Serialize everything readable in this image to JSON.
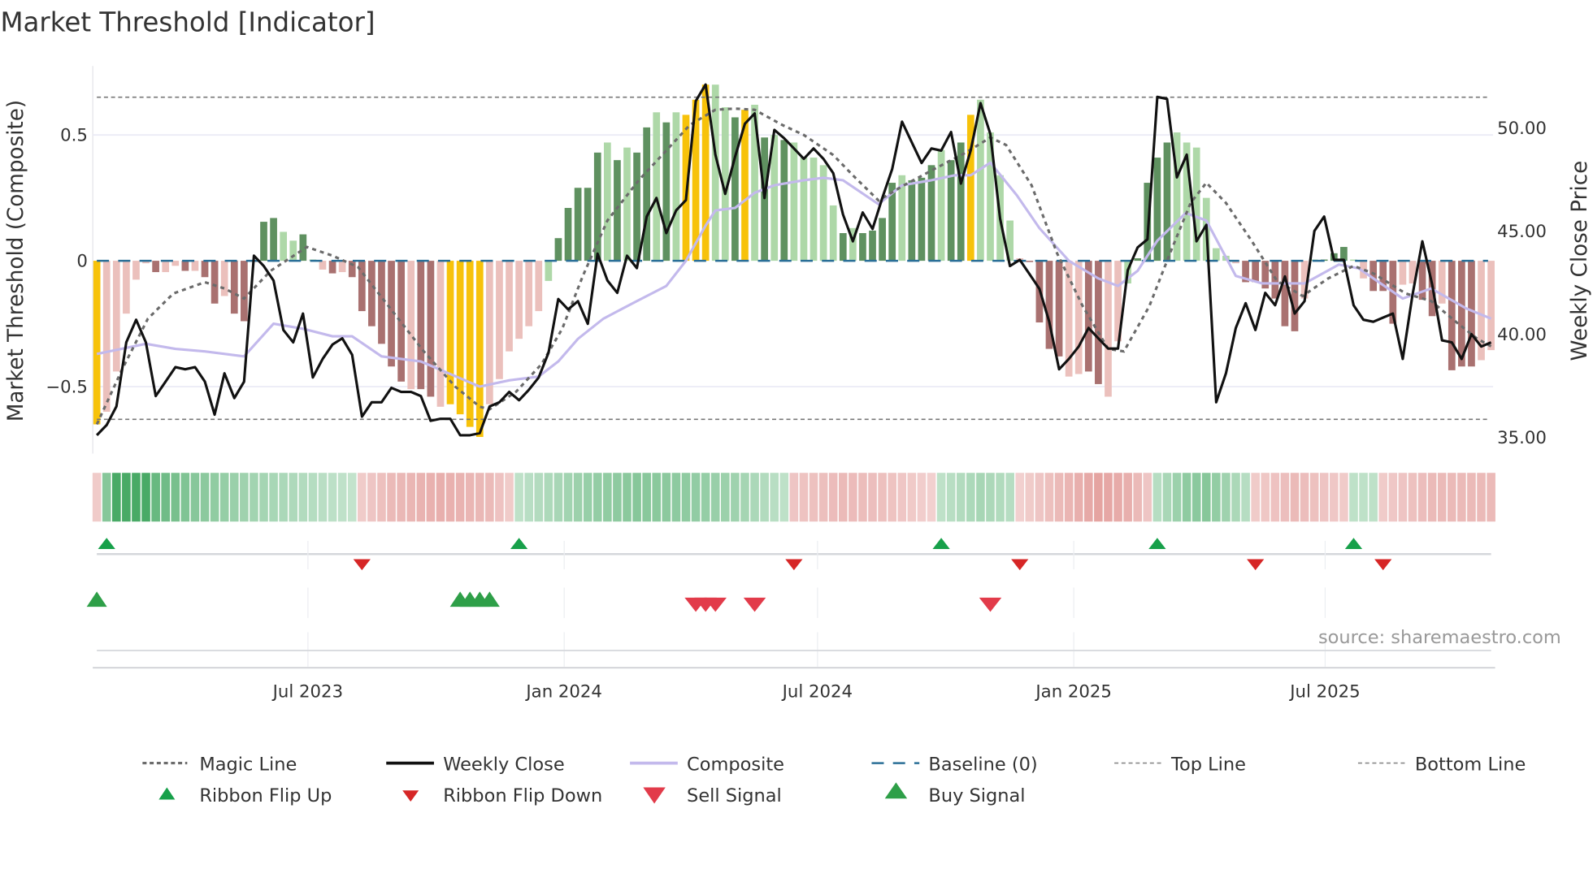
{
  "title": "Market Threshold [Indicator]",
  "source": "source: sharemaestro.com",
  "colors": {
    "G": "#5f9160",
    "g": "#aed8a8",
    "R": "#a97170",
    "r": "#ebc0bc",
    "Y": "#f7c20a",
    "close": "#111111",
    "composite": "#c3b9ec",
    "magic": "#6b6b6b",
    "baseline": "#2a6f97",
    "ribbon_up": "#2f9e50",
    "ribbon_down": "#d46a66",
    "flip_up": "#17a04a",
    "flip_down": "#d62626",
    "sell": "#e23b4a",
    "buy": "#2e9f48"
  },
  "chart_data": {
    "type": "bar",
    "title": "Market Threshold [Indicator]",
    "ylabel": "Market Threshold (Composite)",
    "y2label": "Weekly Close Price",
    "ylim": [
      -0.75,
      0.75
    ],
    "y2lim": [
      34.2,
      56.3
    ],
    "yticks": [
      {
        "v": 0.5,
        "label": "0.5"
      },
      {
        "v": 0,
        "label": "0"
      },
      {
        "v": -0.5,
        "label": "−0.5"
      }
    ],
    "y2ticks": [
      {
        "v": 50,
        "label": "50.00"
      },
      {
        "v": 45,
        "label": "45.00"
      },
      {
        "v": 40,
        "label": "40.00"
      },
      {
        "v": 35,
        "label": "35.00"
      }
    ],
    "xticks": [
      {
        "week": 21.5,
        "label": "Jul 2023"
      },
      {
        "week": 47.6,
        "label": "Jan 2024"
      },
      {
        "week": 73.4,
        "label": "Jul 2024"
      },
      {
        "week": 99.5,
        "label": "Jan 2025"
      },
      {
        "week": 125.1,
        "label": "Jul 2025"
      }
    ],
    "top_line": 0.65,
    "bottom_line": -0.63,
    "baseline": 0,
    "composite_bars": [
      -0.65,
      -0.6,
      -0.44,
      -0.21,
      -0.075,
      -0.01,
      -0.045,
      -0.045,
      -0.02,
      -0.04,
      -0.04,
      -0.065,
      -0.17,
      -0.14,
      -0.21,
      -0.24,
      -0.005,
      0.155,
      0.17,
      0.115,
      0.08,
      0.105,
      0.005,
      -0.035,
      -0.05,
      -0.045,
      -0.065,
      -0.2,
      -0.26,
      -0.33,
      -0.42,
      -0.48,
      -0.51,
      -0.51,
      -0.54,
      -0.58,
      -0.57,
      -0.61,
      -0.66,
      -0.7,
      -0.57,
      -0.47,
      -0.36,
      -0.31,
      -0.26,
      -0.2,
      -0.08,
      0.09,
      0.21,
      0.29,
      0.29,
      0.43,
      0.47,
      0.4,
      0.45,
      0.43,
      0.53,
      0.59,
      0.55,
      0.59,
      0.58,
      0.64,
      0.7,
      0.7,
      0.61,
      0.57,
      0.6,
      0.62,
      0.49,
      0.5,
      0.48,
      0.47,
      0.41,
      0.41,
      0.38,
      0.22,
      0.11,
      0.13,
      0.11,
      0.12,
      0.17,
      0.31,
      0.34,
      0.32,
      0.33,
      0.38,
      0.44,
      0.4,
      0.47,
      0.58,
      0.64,
      0.51,
      0.34,
      0.16,
      0.01,
      -0.005,
      -0.245,
      -0.35,
      -0.38,
      -0.46,
      -0.45,
      -0.44,
      -0.49,
      -0.54,
      -0.32,
      -0.09,
      0.01,
      0.31,
      0.41,
      0.47,
      0.51,
      0.47,
      0.45,
      0.25,
      0.05,
      0.02,
      -0.01,
      -0.085,
      -0.085,
      -0.11,
      -0.15,
      -0.26,
      -0.28,
      -0.15,
      0.005,
      0.005,
      0.03,
      0.055,
      0.005,
      -0.07,
      -0.12,
      -0.12,
      -0.25,
      -0.095,
      -0.09,
      -0.155,
      -0.22,
      -0.17,
      -0.435,
      -0.42,
      -0.42,
      -0.395,
      -0.355
    ],
    "bar_states": "YrrrrrRrrRrRRrRRrGGggGgrRrRRRRRRrRRrYYYYrrrrrrgGGGGGgGgGGgGgYYYggGYgGgGgggggGgGGGGgGGGgGGYggggrRRRRrrRRrrgGGGGggggggrRRRRRRrgGGGgrRRRrrRRrRRRrr",
    "weekly_close": [
      35.1,
      35.6,
      36.5,
      39.6,
      40.7,
      39.6,
      37.0,
      37.7,
      38.4,
      38.3,
      38.4,
      37.7,
      36.1,
      38.1,
      36.9,
      37.7,
      43.8,
      43.3,
      42.6,
      40.2,
      39.6,
      41.0,
      37.9,
      38.8,
      39.5,
      39.8,
      39.0,
      36.0,
      36.7,
      36.7,
      37.4,
      37.2,
      37.2,
      37.0,
      35.8,
      35.9,
      35.9,
      35.1,
      35.1,
      35.2,
      36.5,
      36.7,
      37.2,
      36.8,
      37.3,
      37.9,
      39.1,
      41.7,
      41.2,
      41.6,
      40.5,
      43.9,
      42.6,
      42.0,
      43.8,
      43.2,
      45.7,
      46.6,
      44.9,
      46.0,
      46.5,
      51.3,
      52.1,
      48.7,
      46.8,
      48.6,
      50.2,
      50.7,
      46.6,
      49.9,
      49.5,
      49.0,
      48.5,
      49.0,
      48.5,
      47.8,
      45.8,
      44.5,
      45.9,
      45.1,
      46.6,
      48.0,
      50.3,
      49.3,
      48.3,
      49.0,
      48.9,
      49.8,
      47.3,
      48.9,
      51.2,
      49.7,
      45.6,
      43.3,
      43.6,
      42.9,
      42.2,
      40.6,
      38.3,
      38.8,
      39.4,
      40.3,
      39.8,
      39.3,
      39.3,
      43.1,
      44.2,
      44.6,
      51.5,
      51.4,
      47.6,
      48.7,
      44.5,
      45.3,
      36.7,
      38.1,
      40.3,
      41.5,
      40.2,
      42.0,
      41.4,
      42.8,
      41.0,
      41.6,
      45.0,
      45.7,
      43.6,
      43.6,
      41.4,
      40.7,
      40.6,
      40.8,
      41.0,
      38.8,
      41.9,
      44.5,
      42.4,
      39.7,
      39.6,
      38.8,
      40.0,
      39.4,
      39.6
    ],
    "composite_line": [
      [
        0,
        -0.37
      ],
      [
        5,
        -0.33
      ],
      [
        8,
        -0.35
      ],
      [
        11,
        -0.36
      ],
      [
        15,
        -0.38
      ],
      [
        18,
        -0.25
      ],
      [
        21,
        -0.27
      ],
      [
        24,
        -0.3
      ],
      [
        26,
        -0.3
      ],
      [
        29,
        -0.38
      ],
      [
        33,
        -0.4
      ],
      [
        36,
        -0.45
      ],
      [
        39,
        -0.5
      ],
      [
        42,
        -0.475
      ],
      [
        45,
        -0.46
      ],
      [
        47,
        -0.4
      ],
      [
        49,
        -0.31
      ],
      [
        51.6,
        -0.23
      ],
      [
        55,
        -0.16
      ],
      [
        58,
        -0.1
      ],
      [
        60,
        0.0
      ],
      [
        62,
        0.14
      ],
      [
        63,
        0.2
      ],
      [
        65,
        0.21
      ],
      [
        67,
        0.27
      ],
      [
        69,
        0.3
      ],
      [
        72,
        0.32
      ],
      [
        74,
        0.33
      ],
      [
        76,
        0.32
      ],
      [
        79.6,
        0.225
      ],
      [
        82,
        0.3
      ],
      [
        85,
        0.32
      ],
      [
        87.4,
        0.34
      ],
      [
        89,
        0.34
      ],
      [
        91,
        0.39
      ],
      [
        93.7,
        0.26
      ],
      [
        96,
        0.13
      ],
      [
        99,
        0.0
      ],
      [
        102,
        -0.07
      ],
      [
        104,
        -0.1
      ],
      [
        106,
        -0.04
      ],
      [
        108,
        0.08
      ],
      [
        110.9,
        0.19
      ],
      [
        113,
        0.16
      ],
      [
        116,
        -0.06
      ],
      [
        118.7,
        -0.09
      ],
      [
        123,
        -0.09
      ],
      [
        126.5,
        -0.015
      ],
      [
        128.5,
        -0.03
      ],
      [
        133,
        -0.15
      ],
      [
        135.9,
        -0.11
      ],
      [
        139.5,
        -0.19
      ],
      [
        142,
        -0.23
      ]
    ],
    "magic_line": [
      [
        0,
        -0.65
      ],
      [
        2.6,
        -0.43
      ],
      [
        5.2,
        -0.23
      ],
      [
        7.8,
        -0.13
      ],
      [
        11,
        -0.085
      ],
      [
        13,
        -0.11
      ],
      [
        15,
        -0.15
      ],
      [
        17.7,
        -0.04
      ],
      [
        21.4,
        0.055
      ],
      [
        24,
        0.02
      ],
      [
        26.6,
        -0.025
      ],
      [
        29.7,
        -0.18
      ],
      [
        33.3,
        -0.36
      ],
      [
        36.5,
        -0.5
      ],
      [
        39,
        -0.58
      ],
      [
        40,
        -0.59
      ],
      [
        42.7,
        -0.52
      ],
      [
        45.3,
        -0.41
      ],
      [
        47.4,
        -0.27
      ],
      [
        49.5,
        -0.06
      ],
      [
        52,
        0.16
      ],
      [
        55.2,
        0.32
      ],
      [
        57.8,
        0.43
      ],
      [
        60.4,
        0.54
      ],
      [
        63,
        0.6
      ],
      [
        65,
        0.605
      ],
      [
        67,
        0.6
      ],
      [
        69.8,
        0.54
      ],
      [
        72,
        0.5
      ],
      [
        75,
        0.42
      ],
      [
        77,
        0.34
      ],
      [
        79.6,
        0.24
      ],
      [
        82.2,
        0.3
      ],
      [
        85.3,
        0.365
      ],
      [
        88.5,
        0.43
      ],
      [
        91,
        0.49
      ],
      [
        92.6,
        0.46
      ],
      [
        95.2,
        0.3
      ],
      [
        97.8,
        0.03
      ],
      [
        100.4,
        -0.18
      ],
      [
        103,
        -0.35
      ],
      [
        104.6,
        -0.36
      ],
      [
        107.2,
        -0.18
      ],
      [
        109.3,
        0.03
      ],
      [
        111.4,
        0.23
      ],
      [
        113,
        0.31
      ],
      [
        115,
        0.23
      ],
      [
        117.6,
        0.08
      ],
      [
        120.2,
        -0.08
      ],
      [
        122.8,
        -0.14
      ],
      [
        125.4,
        -0.07
      ],
      [
        128,
        -0.02
      ],
      [
        130,
        -0.05
      ],
      [
        133.3,
        -0.13
      ],
      [
        135.9,
        -0.16
      ],
      [
        138.5,
        -0.245
      ],
      [
        140.6,
        -0.31
      ],
      [
        142,
        -0.34
      ]
    ],
    "ribbon": [
      [
        0,
        -0.2
      ],
      [
        1,
        0.5
      ],
      [
        2,
        0.9
      ],
      [
        5,
        0.9
      ],
      [
        6,
        0.7
      ],
      [
        10,
        0.5
      ],
      [
        15,
        0.35
      ],
      [
        20,
        0.25
      ],
      [
        26,
        0.12
      ],
      [
        27,
        -0.2
      ],
      [
        30,
        -0.35
      ],
      [
        35,
        -0.45
      ],
      [
        40,
        -0.35
      ],
      [
        42,
        -0.2
      ],
      [
        43,
        0.15
      ],
      [
        50,
        0.4
      ],
      [
        55,
        0.5
      ],
      [
        60,
        0.45
      ],
      [
        65,
        0.35
      ],
      [
        70,
        0.15
      ],
      [
        71,
        -0.25
      ],
      [
        76,
        -0.35
      ],
      [
        80,
        -0.3
      ],
      [
        85,
        -0.15
      ],
      [
        86,
        0.15
      ],
      [
        90,
        0.3
      ],
      [
        93,
        0.2
      ],
      [
        94,
        -0.15
      ],
      [
        98,
        -0.35
      ],
      [
        102,
        -0.55
      ],
      [
        105,
        -0.45
      ],
      [
        107,
        -0.25
      ],
      [
        108,
        0.2
      ],
      [
        111,
        0.45
      ],
      [
        113,
        0.5
      ],
      [
        117,
        0.2
      ],
      [
        118,
        -0.2
      ],
      [
        122,
        -0.35
      ],
      [
        127,
        -0.2
      ],
      [
        128,
        0.15
      ],
      [
        130,
        0.15
      ],
      [
        131,
        -0.2
      ],
      [
        136,
        -0.35
      ],
      [
        142,
        -0.35
      ]
    ],
    "ribbon_flip_up": [
      1,
      43,
      86,
      108,
      128
    ],
    "ribbon_flip_down": [
      27,
      71,
      94,
      118,
      131
    ],
    "buy_signals": [
      0,
      37,
      38,
      39,
      40
    ],
    "sell_signals": [
      61,
      62,
      63,
      67,
      91
    ]
  },
  "legend": [
    {
      "label": "Magic Line",
      "kind": "dotted"
    },
    {
      "label": "Weekly Close",
      "kind": "solid"
    },
    {
      "label": "Composite",
      "kind": "composite"
    },
    {
      "label": "Baseline (0)",
      "kind": "dashed"
    },
    {
      "label": "Top Line",
      "kind": "thin-dotted"
    },
    {
      "label": "Bottom Line",
      "kind": "thin-dotted"
    },
    {
      "label": "Ribbon Flip Up",
      "kind": "flip-up"
    },
    {
      "label": "Ribbon Flip Down",
      "kind": "flip-down"
    },
    {
      "label": "Sell Signal",
      "kind": "sell"
    },
    {
      "label": "Buy Signal",
      "kind": "buy"
    }
  ]
}
